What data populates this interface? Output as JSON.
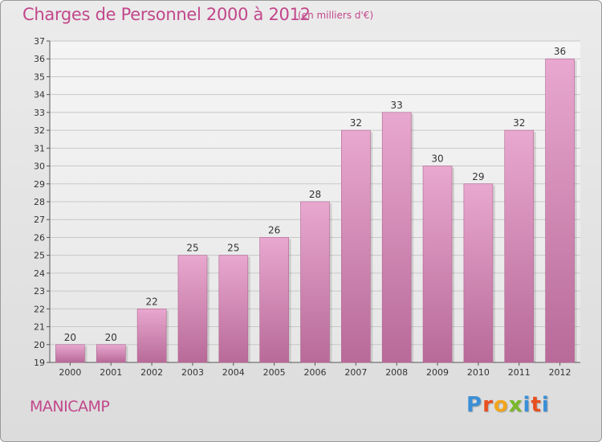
{
  "header": {
    "title": "Charges de Personnel 2000 à 2012",
    "subtitle": "(en milliers d'€)"
  },
  "footer": {
    "commune": "MANICAMP",
    "logo_text": "Proxiti"
  },
  "colors": {
    "title": "#c2478b",
    "bar_top": "#e8a8cf",
    "bar_bottom": "#b86a98",
    "grid": "#c8c8c8"
  },
  "chart_data": {
    "type": "bar",
    "categories": [
      "2000",
      "2001",
      "2002",
      "2003",
      "2004",
      "2005",
      "2006",
      "2007",
      "2008",
      "2009",
      "2010",
      "2011",
      "2012"
    ],
    "values": [
      20,
      20,
      22,
      25,
      25,
      26,
      28,
      32,
      33,
      30,
      29,
      32,
      36
    ],
    "title": "Charges de Personnel 2000 à 2012",
    "subtitle": "(en milliers d'€)",
    "xlabel": "",
    "ylabel": "",
    "ylim": [
      19,
      37
    ],
    "yticks": [
      19,
      20,
      21,
      22,
      23,
      24,
      25,
      26,
      27,
      28,
      29,
      30,
      31,
      32,
      33,
      34,
      35,
      36,
      37
    ],
    "grid": true,
    "legend": "none"
  }
}
